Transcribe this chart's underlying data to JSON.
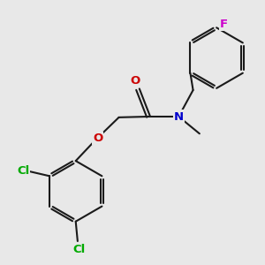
{
  "background_color": "#e8e8e8",
  "bond_color": "#1a1a1a",
  "bond_lw": 1.5,
  "dbo": 0.045,
  "atom_colors": {
    "O": "#cc0000",
    "N": "#0000cc",
    "Cl": "#00aa00",
    "F": "#cc00cc"
  },
  "font_size": 9.5,
  "figsize": [
    3.0,
    3.0
  ],
  "dpi": 100,
  "xlim": [
    -0.3,
    6.0
  ],
  "ylim": [
    -0.5,
    6.5
  ]
}
